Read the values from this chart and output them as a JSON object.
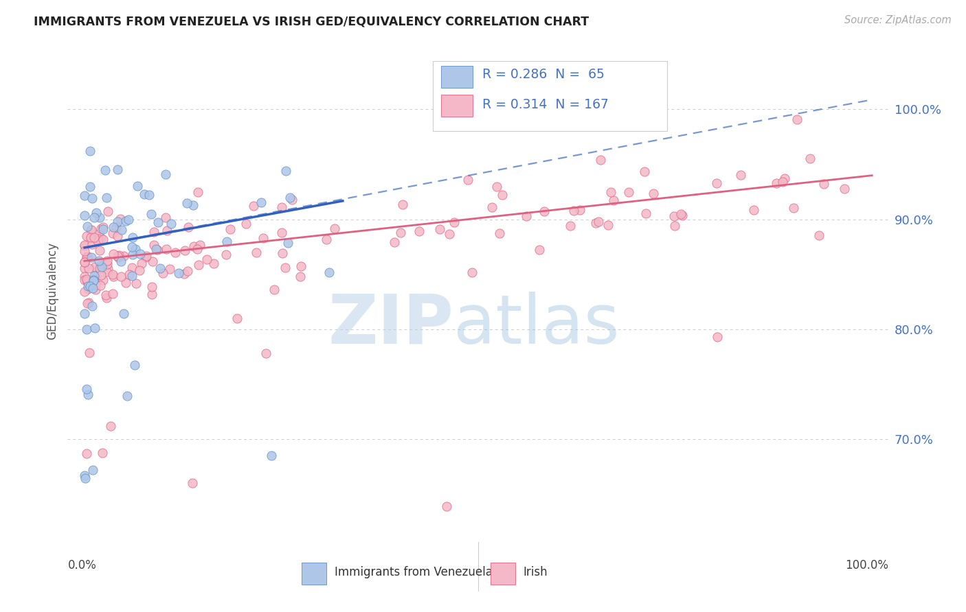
{
  "title": "IMMIGRANTS FROM VENEZUELA VS IRISH GED/EQUIVALENCY CORRELATION CHART",
  "source": "Source: ZipAtlas.com",
  "ylabel": "GED/Equivalency",
  "legend_label1": "Immigrants from Venezuela",
  "legend_label2": "Irish",
  "r1": "0.286",
  "n1": "65",
  "r2": "0.314",
  "n2": "167",
  "color_venezuela_fill": "#aec6e8",
  "color_venezuela_edge": "#5b8fc4",
  "color_irish_fill": "#f4b8c8",
  "color_irish_edge": "#e06080",
  "color_blue_line": "#3060c0",
  "color_pink_line": "#e06080",
  "color_blue_text": "#4472c4",
  "background_color": "#ffffff",
  "grid_color": "#cccccc",
  "xlim": [
    -0.02,
    1.02
  ],
  "ylim": [
    0.615,
    1.055
  ],
  "ytick_positions": [
    0.7,
    0.8,
    0.9,
    1.0
  ],
  "ytick_labels": [
    "70.0%",
    "80.0%",
    "90.0%",
    "100.0%"
  ],
  "watermark_zip_color": "#b8cfe8",
  "watermark_atlas_color": "#90b8d8"
}
